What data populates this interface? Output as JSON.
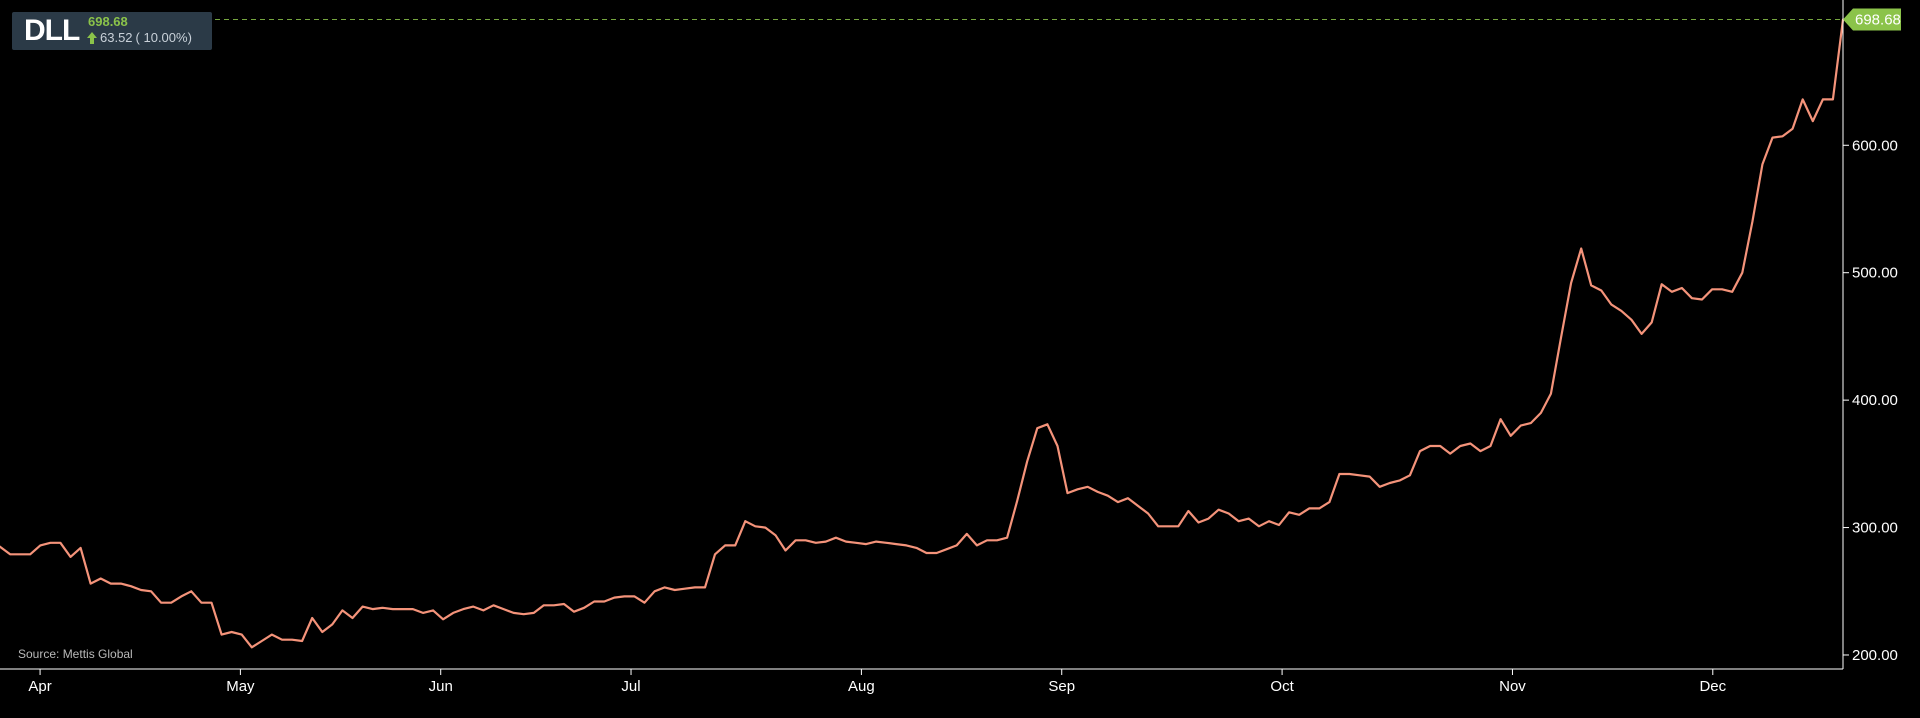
{
  "ticker": {
    "symbol": "DLL",
    "price": "698.68",
    "change": "63.52",
    "change_pct": "( 10.00%)",
    "up_color": "#8bc34a"
  },
  "source": "Source: Mettis Global",
  "colors": {
    "line": "#f4937a",
    "axis": "#ffffff",
    "last_price_badge": "#8bc34a",
    "last_price_dash": "#8bc34a",
    "background": "#000000"
  },
  "chart_data": {
    "type": "line",
    "title": "",
    "xlabel": "",
    "ylabel": "",
    "ylim": [
      189,
      714
    ],
    "y_ticks": [
      "200.00",
      "300.00",
      "400.00",
      "500.00",
      "600.00"
    ],
    "y_tick_values": [
      200,
      300,
      400,
      500,
      600
    ],
    "x_range": [
      0,
      184
    ],
    "x_ticks": [
      {
        "label": "Apr",
        "x": 4
      },
      {
        "label": "May",
        "x": 24
      },
      {
        "label": "Jun",
        "x": 44
      },
      {
        "label": "Jul",
        "x": 63
      },
      {
        "label": "Aug",
        "x": 86
      },
      {
        "label": "Sep",
        "x": 106
      },
      {
        "label": "Oct",
        "x": 128
      },
      {
        "label": "Nov",
        "x": 151
      },
      {
        "label": "Dec",
        "x": 171
      }
    ],
    "last_value": "698.68",
    "grid": false,
    "legend": "none",
    "series": [
      {
        "values": [
          285,
          279,
          279,
          279,
          286,
          288,
          288,
          277,
          284,
          256,
          260,
          256,
          256,
          254,
          251,
          250,
          241,
          241,
          246,
          250,
          241,
          241,
          216,
          218,
          216,
          206,
          211,
          216,
          212,
          212,
          211,
          229,
          218,
          224,
          235,
          229,
          238,
          236,
          237,
          236,
          236,
          236,
          233,
          235,
          228,
          233,
          236,
          238,
          235,
          239,
          236,
          233,
          232,
          233,
          239,
          239,
          240,
          234,
          237,
          242,
          242,
          245,
          246,
          246,
          241,
          250,
          253,
          251,
          252,
          253,
          253,
          279,
          286,
          286,
          305,
          301,
          300,
          294,
          282,
          290,
          290,
          288,
          289,
          292,
          289,
          288,
          287,
          289,
          288,
          287,
          286,
          284,
          280,
          280,
          283,
          286,
          295,
          286,
          290,
          290,
          292,
          321,
          352,
          378,
          381,
          364,
          327,
          330,
          332,
          328,
          325,
          320,
          323,
          317,
          311,
          301,
          301,
          301,
          313,
          304,
          307,
          314,
          311,
          305,
          307,
          301,
          305,
          302,
          312,
          310,
          315,
          315,
          320,
          342,
          342,
          341,
          340,
          332,
          335,
          337,
          341,
          360,
          364,
          364,
          358,
          364,
          366,
          360,
          364,
          385,
          372,
          380,
          382,
          390,
          405,
          449,
          492,
          519,
          490,
          486,
          475,
          470,
          463,
          452,
          461,
          491,
          485,
          488,
          480,
          479,
          487,
          487,
          485,
          500,
          540,
          585,
          606,
          607,
          613,
          636,
          619,
          636,
          636,
          698.68
        ]
      }
    ]
  }
}
